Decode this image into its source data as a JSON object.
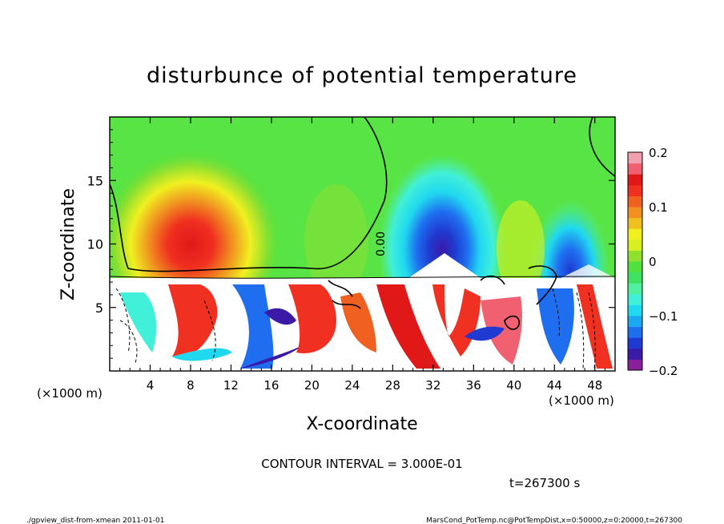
{
  "chart_data": {
    "type": "heatmap",
    "title": "disturbunce of potential temperature",
    "xlabel": "X-coordinate",
    "ylabel": "Z-coordinate",
    "x_unit": "(×1000 m)",
    "x_unit_left": "(×1000 m)",
    "xlim": [
      0,
      50
    ],
    "ylim": [
      0,
      20
    ],
    "x_ticks": [
      4,
      8,
      12,
      16,
      20,
      24,
      28,
      32,
      36,
      40,
      44,
      48
    ],
    "y_ticks": [
      5,
      10,
      15
    ],
    "colorbar": {
      "range": [
        -0.2,
        0.2
      ],
      "labels": [
        {
          "value": 0.2,
          "text": "0.2"
        },
        {
          "value": 0.1,
          "text": "0.1"
        },
        {
          "value": 0,
          "text": "0"
        },
        {
          "value": -0.1,
          "text": "−0.1"
        },
        {
          "value": -0.2,
          "text": "−0.2"
        }
      ],
      "colors": [
        "#8a1f9c",
        "#3c1aa8",
        "#1f3ad0",
        "#1f6ef0",
        "#1aa8f0",
        "#20d8f0",
        "#40f0d8",
        "#50f0a0",
        "#40e060",
        "#50e040",
        "#90e030",
        "#d8f020",
        "#f0f020",
        "#f0c020",
        "#f09020",
        "#f06020",
        "#f03020",
        "#e01818",
        "#f06070",
        "#f0a0b0"
      ]
    },
    "contour_interval_text": "CONTOUR INTERVAL = 3.000E-01",
    "contour_label": "0.00",
    "time_text": "t=267300 s",
    "regions": [
      {
        "kind": "warm-anomaly",
        "x": 8,
        "z": 9.5,
        "value": 0.15
      },
      {
        "kind": "cold-anomaly",
        "x": 33,
        "z": 11,
        "value": -0.18
      },
      {
        "kind": "cold-anomaly",
        "x": 45.5,
        "z": 10,
        "value": -0.14
      }
    ]
  },
  "footer": {
    "left": "./gpview_dist-from-xmean  2011-01-01",
    "right": "MarsCond_PotTemp.nc@PotTempDist,x=0:50000,z=0:20000,t=267300"
  }
}
